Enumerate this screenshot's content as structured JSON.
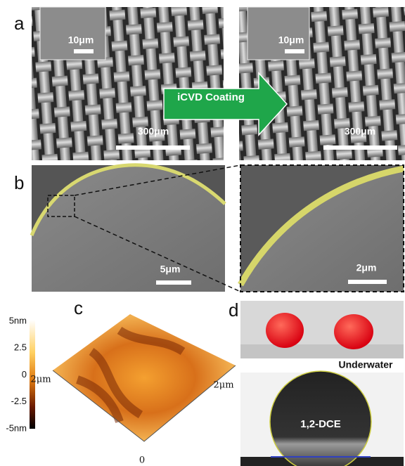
{
  "panels": {
    "a": {
      "label": "a",
      "left": {
        "inset_scale": "10μm",
        "scale": "300μm"
      },
      "right": {
        "inset_scale": "10μm",
        "scale": "300μm"
      },
      "arrow": "iCVD Coating"
    },
    "b": {
      "label": "b",
      "left_scale": "5μm",
      "right_scale": "2μm"
    },
    "c": {
      "label": "c",
      "colorbar": [
        "5nm",
        "2.5",
        "0",
        "-2.5",
        "-5nm"
      ],
      "axis_left": "2μm",
      "axis_right": "2μm",
      "origin": "0"
    },
    "d": {
      "label": "d",
      "caption": "Underwater",
      "droplet": "1,2-DCE"
    }
  }
}
